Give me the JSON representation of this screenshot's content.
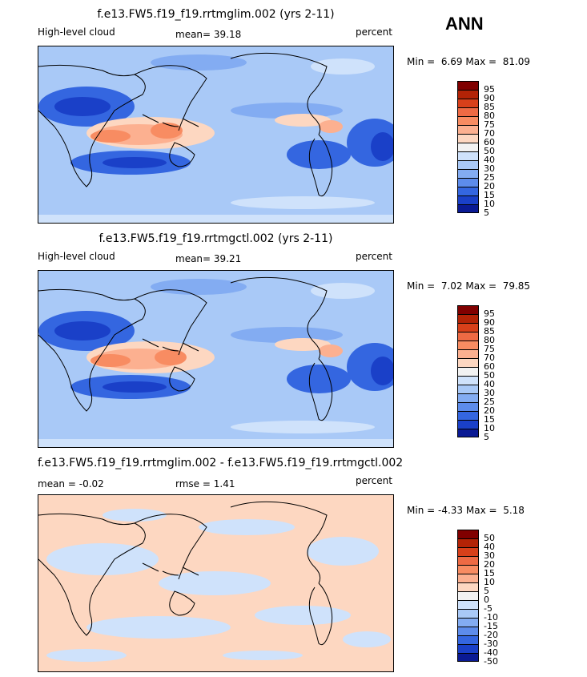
{
  "season": "ANN",
  "panels": [
    {
      "title": "f.e13.FW5.f19_f19.rrtmglim.002 (yrs 2-11)",
      "left_label": "High-level cloud",
      "mean_label": "mean=",
      "mean_value": "39.18",
      "units": "percent",
      "min_label": "Min =",
      "min_value": "6.69",
      "max_label": "Max =",
      "max_value": "81.09",
      "levels": [
        "95",
        "90",
        "85",
        "80",
        "75",
        "70",
        "60",
        "50",
        "40",
        "30",
        "25",
        "20",
        "15",
        "10",
        "5"
      ]
    },
    {
      "title": "f.e13.FW5.f19_f19.rrtmgctl.002 (yrs 2-11)",
      "left_label": "High-level cloud",
      "mean_label": "mean=",
      "mean_value": "39.21",
      "units": "percent",
      "min_label": "Min =",
      "min_value": "7.02",
      "max_label": "Max =",
      "max_value": "79.85",
      "levels": [
        "95",
        "90",
        "85",
        "80",
        "75",
        "70",
        "60",
        "50",
        "40",
        "30",
        "25",
        "20",
        "15",
        "10",
        "5"
      ]
    },
    {
      "title": "f.e13.FW5.f19_f19.rrtmglim.002 - f.e13.FW5.f19_f19.rrtmgctl.002",
      "mean_label": "mean =",
      "mean_value": "-0.02",
      "rmse_label": "rmse =",
      "rmse_value": "1.41",
      "units": "percent",
      "min_label": "Min =",
      "min_value": "-4.33",
      "max_label": "Max =",
      "max_value": "5.18",
      "levels": [
        "50",
        "40",
        "30",
        "20",
        "15",
        "10",
        "5",
        "0",
        "-5",
        "-10",
        "-15",
        "-20",
        "-30",
        "-40",
        "-50"
      ]
    }
  ],
  "colorbar_colors": [
    "#800000",
    "#b32306",
    "#d8401a",
    "#ee6a44",
    "#f88c62",
    "#fcb090",
    "#fdd7c1",
    "#f2f2f2",
    "#cfe2fb",
    "#a9c9f7",
    "#83acf2",
    "#5d8ceb",
    "#3466e0",
    "#1a40c8",
    "#0a1a94"
  ]
}
